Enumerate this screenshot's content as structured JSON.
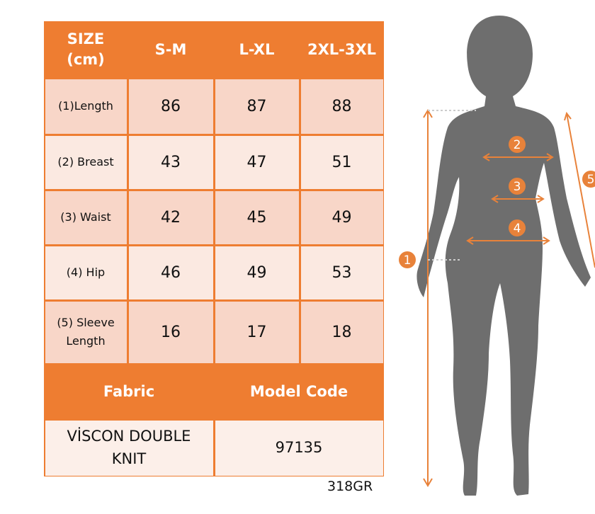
{
  "table": {
    "header": [
      "SIZE (cm)",
      "S-M",
      "L-XL",
      "2XL-3XL"
    ],
    "rows": [
      [
        "(1)Length",
        86,
        87,
        88
      ],
      [
        "(2) Breast",
        43,
        47,
        51
      ],
      [
        "(3) Waist",
        42,
        45,
        49
      ],
      [
        "(4) Hip",
        46,
        49,
        53
      ],
      [
        "(5) Sleeve Length",
        16,
        17,
        18
      ]
    ],
    "footer_header": [
      "Fabric",
      "Model Code"
    ],
    "footer_values": [
      "VİSCON DOUBLE KNIT",
      97135
    ]
  },
  "code": "318GR",
  "diagram": {
    "markers": [
      1,
      2,
      3,
      4,
      5
    ]
  }
}
